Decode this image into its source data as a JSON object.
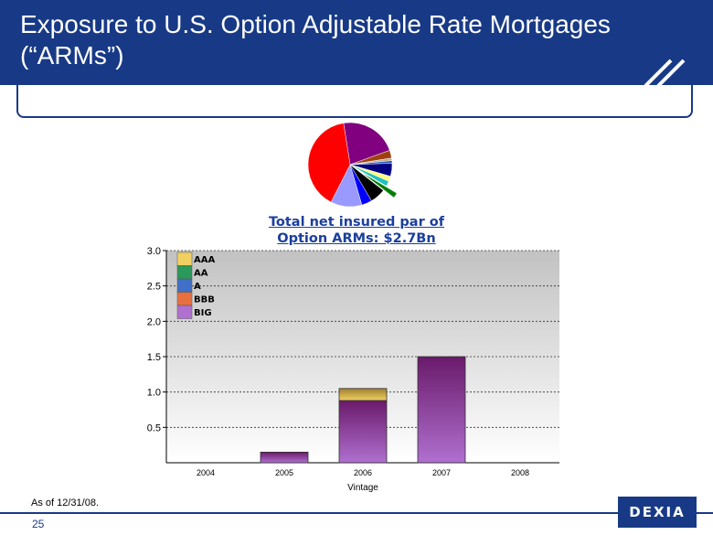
{
  "header": {
    "title": "Exposure to U.S. Option Adjustable Rate Mortgages (“ARMs”)"
  },
  "pie": {
    "caption_line1": "Total net insured par of",
    "caption_line2": "Option ARMs: $2.7Bn",
    "colors": [
      "#800080",
      "#a04010",
      "#c0b090",
      "#2050c0",
      "#000080",
      "#ffff80",
      "#20c0c0",
      "#008000",
      "#000000",
      "#0000ff",
      "#9999ff",
      "#ff0000"
    ]
  },
  "chart_data": {
    "type": "bar",
    "stacked": true,
    "categories": [
      "2004",
      "2005",
      "2006",
      "2007",
      "2008"
    ],
    "series": [
      {
        "name": "AAA",
        "values": [
          0,
          0,
          0.17,
          0,
          0
        ]
      },
      {
        "name": "AA",
        "values": [
          0,
          0,
          0,
          0,
          0
        ]
      },
      {
        "name": "A",
        "values": [
          0,
          0,
          0,
          0,
          0
        ]
      },
      {
        "name": "BBB",
        "values": [
          0,
          0,
          0,
          0,
          0
        ]
      },
      {
        "name": "BIG",
        "values": [
          0,
          0.15,
          0.88,
          1.5,
          0
        ]
      }
    ],
    "xlabel": "Vintage",
    "ylabel": "",
    "ylim": [
      0,
      3.0
    ],
    "yticks": [
      "3.0",
      "2.5",
      "2.0",
      "1.5",
      "1.0",
      "0.5"
    ],
    "ytick_values": [
      3.0,
      2.5,
      2.0,
      1.5,
      1.0,
      0.5
    ],
    "legend_position": "top-left",
    "grid": true,
    "colors": {
      "AAA": "#f0d060",
      "AA": "#2a9a5a",
      "A": "#4070c8",
      "BBB": "#e87040",
      "BIG": "#b070d0"
    }
  },
  "footer": {
    "as_of": "As of 12/31/08.",
    "page": "25",
    "logo": "DEXIA"
  }
}
